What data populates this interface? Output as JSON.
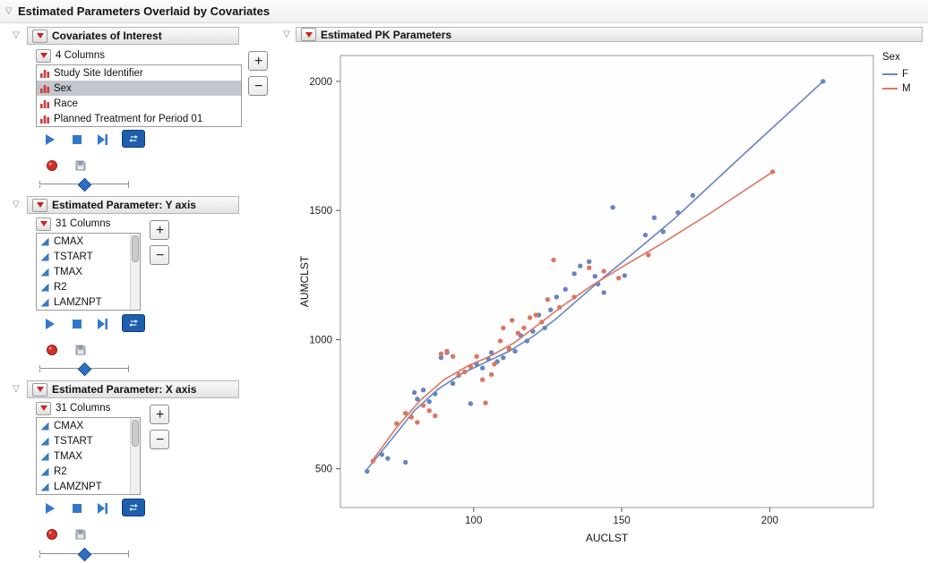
{
  "window_title": "Estimated Parameters Overlaid by Covariates",
  "colors": {
    "series_f": "#6785c1",
    "series_m": "#dd7560",
    "media_blue": "#3279cc",
    "loop_button_bg": "#1d5fae",
    "record_red": "#d23028",
    "selection_bg": "#c3c7cd"
  },
  "left": {
    "buttons": {
      "add": "+",
      "remove": "−"
    },
    "covariates": {
      "title": "Covariates of Interest",
      "count_label": "4 Columns",
      "items": [
        {
          "label": "Study Site Identifier",
          "type": "nominal",
          "selected": false
        },
        {
          "label": "Sex",
          "type": "nominal",
          "selected": true
        },
        {
          "label": "Race",
          "type": "nominal",
          "selected": false
        },
        {
          "label": "Planned Treatment for Period 01",
          "type": "nominal",
          "selected": false
        }
      ]
    },
    "y_param": {
      "title": "Estimated Parameter: Y axis",
      "count_label": "31 Columns",
      "items": [
        {
          "label": "CMAX",
          "type": "continuous"
        },
        {
          "label": "TSTART",
          "type": "continuous"
        },
        {
          "label": "TMAX",
          "type": "continuous"
        },
        {
          "label": "R2",
          "type": "continuous"
        },
        {
          "label": "LAMZNPT",
          "type": "continuous"
        }
      ]
    },
    "x_param": {
      "title": "Estimated Parameter: X axis",
      "count_label": "31 Columns",
      "items": [
        {
          "label": "CMAX",
          "type": "continuous"
        },
        {
          "label": "TSTART",
          "type": "continuous"
        },
        {
          "label": "TMAX",
          "type": "continuous"
        },
        {
          "label": "R2",
          "type": "continuous"
        },
        {
          "label": "LAMZNPT",
          "type": "continuous"
        }
      ]
    }
  },
  "plot_panel": {
    "title": "Estimated PK Parameters"
  },
  "chart_data": {
    "type": "scatter",
    "title": "Estimated PK Parameters",
    "xlabel": "AUCLST",
    "ylabel": "AUMCLST",
    "xlim": [
      55,
      235
    ],
    "ylim": [
      350,
      2100
    ],
    "x_ticks": [
      100,
      150,
      200
    ],
    "y_ticks": [
      500,
      1000,
      1500,
      2000
    ],
    "grid": false,
    "legend": {
      "title": "Sex",
      "position": "right"
    },
    "series": [
      {
        "name": "F",
        "color": "#6785c1",
        "points": [
          [
            64,
            490
          ],
          [
            69,
            555
          ],
          [
            71,
            540
          ],
          [
            77,
            525
          ],
          [
            80,
            795
          ],
          [
            81,
            770
          ],
          [
            83,
            805
          ],
          [
            85,
            760
          ],
          [
            87,
            790
          ],
          [
            89,
            930
          ],
          [
            91,
            950
          ],
          [
            93,
            830
          ],
          [
            95,
            862
          ],
          [
            99,
            752
          ],
          [
            101,
            905
          ],
          [
            103,
            890
          ],
          [
            105,
            925
          ],
          [
            106,
            950
          ],
          [
            108,
            915
          ],
          [
            110,
            930
          ],
          [
            112,
            962
          ],
          [
            114,
            955
          ],
          [
            116,
            1015
          ],
          [
            118,
            995
          ],
          [
            120,
            1032
          ],
          [
            122,
            1095
          ],
          [
            124,
            1045
          ],
          [
            126,
            1115
          ],
          [
            128,
            1165
          ],
          [
            131,
            1195
          ],
          [
            134,
            1255
          ],
          [
            136,
            1285
          ],
          [
            139,
            1302
          ],
          [
            141,
            1245
          ],
          [
            142,
            1215
          ],
          [
            144,
            1182
          ],
          [
            147,
            1512
          ],
          [
            151,
            1248
          ],
          [
            158,
            1405
          ],
          [
            161,
            1472
          ],
          [
            164,
            1418
          ],
          [
            169,
            1492
          ],
          [
            174,
            1558
          ],
          [
            218,
            2000
          ]
        ],
        "line": [
          [
            64,
            498
          ],
          [
            72,
            610
          ],
          [
            80,
            725
          ],
          [
            88,
            808
          ],
          [
            96,
            868
          ],
          [
            104,
            912
          ],
          [
            112,
            955
          ],
          [
            120,
            1012
          ],
          [
            128,
            1082
          ],
          [
            136,
            1162
          ],
          [
            144,
            1242
          ],
          [
            155,
            1345
          ],
          [
            168,
            1470
          ],
          [
            190,
            1705
          ],
          [
            218,
            2000
          ]
        ]
      },
      {
        "name": "M",
        "color": "#dd7560",
        "points": [
          [
            66,
            530
          ],
          [
            74,
            675
          ],
          [
            77,
            715
          ],
          [
            79,
            700
          ],
          [
            81,
            680
          ],
          [
            83,
            745
          ],
          [
            85,
            725
          ],
          [
            87,
            705
          ],
          [
            89,
            945
          ],
          [
            91,
            955
          ],
          [
            93,
            935
          ],
          [
            95,
            865
          ],
          [
            97,
            875
          ],
          [
            99,
            895
          ],
          [
            101,
            935
          ],
          [
            103,
            845
          ],
          [
            104,
            755
          ],
          [
            106,
            865
          ],
          [
            107,
            905
          ],
          [
            109,
            995
          ],
          [
            110,
            1045
          ],
          [
            112,
            965
          ],
          [
            113,
            1075
          ],
          [
            115,
            1025
          ],
          [
            117,
            1045
          ],
          [
            119,
            1085
          ],
          [
            121,
            1095
          ],
          [
            123,
            1068
          ],
          [
            125,
            1155
          ],
          [
            127,
            1308
          ],
          [
            129,
            1125
          ],
          [
            134,
            1165
          ],
          [
            139,
            1278
          ],
          [
            144,
            1265
          ],
          [
            149,
            1238
          ],
          [
            159,
            1328
          ],
          [
            201,
            1650
          ]
        ],
        "line": [
          [
            66,
            535
          ],
          [
            74,
            660
          ],
          [
            82,
            765
          ],
          [
            90,
            845
          ],
          [
            98,
            898
          ],
          [
            106,
            938
          ],
          [
            114,
            990
          ],
          [
            122,
            1060
          ],
          [
            130,
            1130
          ],
          [
            140,
            1210
          ],
          [
            150,
            1280
          ],
          [
            163,
            1368
          ],
          [
            180,
            1490
          ],
          [
            201,
            1650
          ]
        ]
      }
    ]
  }
}
